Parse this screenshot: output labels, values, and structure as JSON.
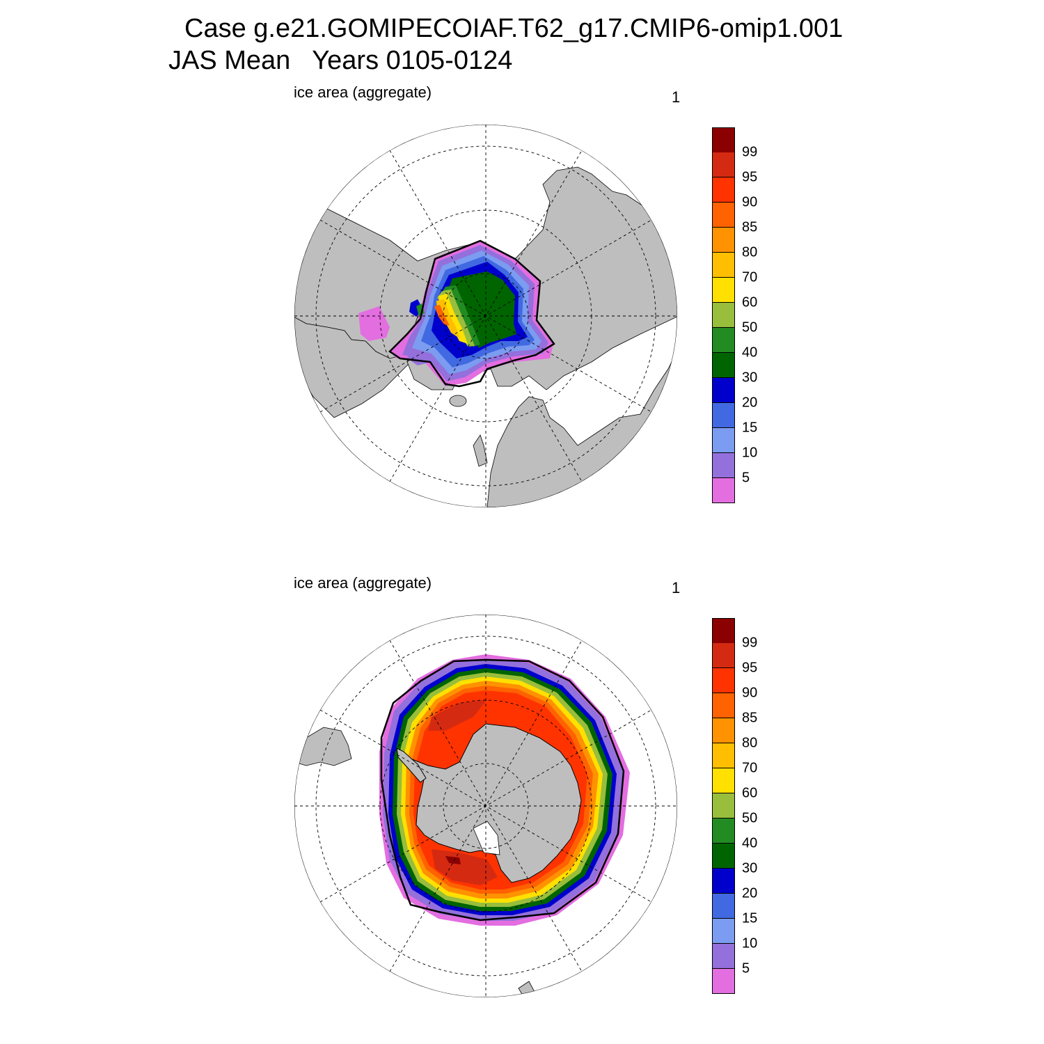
{
  "title": {
    "case": "Case g.e21.GOMIPECOIAF.T62_g17.CMIP6-omip1.001",
    "period": "JAS Mean   Years 0105-0124"
  },
  "panels": [
    {
      "hemisphere": "north",
      "label": "ice area  (aggregate)",
      "unit": "1"
    },
    {
      "hemisphere": "south",
      "label": "ice area  (aggregate)",
      "unit": "1"
    }
  ],
  "colorbar": {
    "colors": [
      "#8b0000",
      "#d42a12",
      "#ff3300",
      "#ff6200",
      "#ff9200",
      "#ffbf00",
      "#ffe000",
      "#98be3c",
      "#228b22",
      "#006400",
      "#0000cd",
      "#4169e1",
      "#7b9cf0",
      "#9370db",
      "#e36ee0"
    ],
    "labels": [
      "99",
      "95",
      "90",
      "85",
      "80",
      "70",
      "60",
      "50",
      "40",
      "30",
      "20",
      "15",
      "10",
      "5"
    ]
  },
  "map_colors": {
    "land": "#bebebe",
    "ocean": "#ffffff",
    "coast": "#000000"
  }
}
